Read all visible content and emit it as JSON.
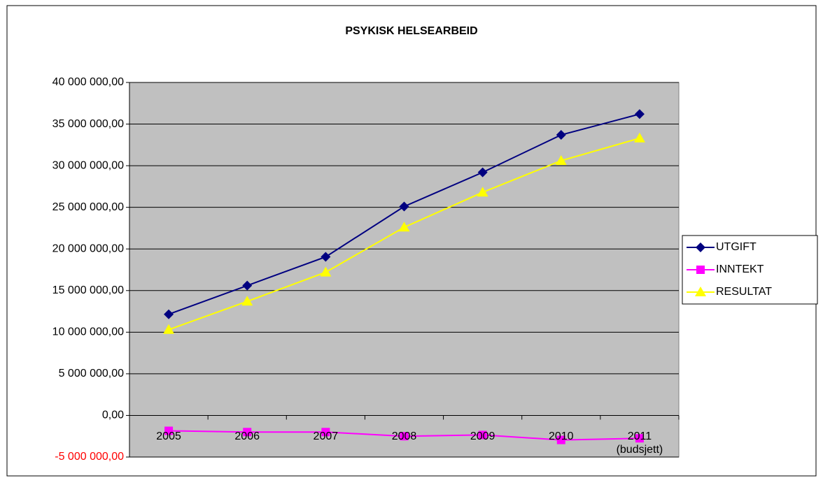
{
  "chart_data": {
    "type": "line",
    "title": "PSYKISK HELSEARBEID",
    "categories": [
      "2005",
      "2006",
      "2007",
      "2008",
      "2009",
      "2010",
      "2011\n(budsjett)"
    ],
    "series": [
      {
        "name": "UTGIFT",
        "color": "#000080",
        "marker": "diamond",
        "values": [
          12150000,
          15600000,
          19050000,
          25100000,
          29200000,
          33700000,
          36200000
        ]
      },
      {
        "name": "INNTEKT",
        "color": "#ff00ff",
        "marker": "square",
        "values": [
          -1850000,
          -2000000,
          -2000000,
          -2500000,
          -2350000,
          -2950000,
          -2750000
        ]
      },
      {
        "name": "RESULTAT",
        "color": "#ffff00",
        "marker": "triangle",
        "values": [
          10300000,
          13700000,
          17200000,
          22600000,
          26800000,
          30600000,
          33300000
        ]
      }
    ],
    "ylim": [
      -5000000,
      40000000
    ],
    "yticks": [
      {
        "value": -5000000,
        "label": "-5 000 000,00"
      },
      {
        "value": 0,
        "label": "0,00"
      },
      {
        "value": 5000000,
        "label": "5 000 000,00"
      },
      {
        "value": 10000000,
        "label": "10 000 000,00"
      },
      {
        "value": 15000000,
        "label": "15 000 000,00"
      },
      {
        "value": 20000000,
        "label": "20 000 000,00"
      },
      {
        "value": 25000000,
        "label": "25 000 000,00"
      },
      {
        "value": 30000000,
        "label": "30 000 000,00"
      },
      {
        "value": 35000000,
        "label": "35 000 000,00"
      },
      {
        "value": 40000000,
        "label": "40 000 000,00"
      }
    ],
    "negative_tick_color": "#ff0000",
    "grid": true,
    "plot_background": "#c0c0c0",
    "legend": "right"
  }
}
